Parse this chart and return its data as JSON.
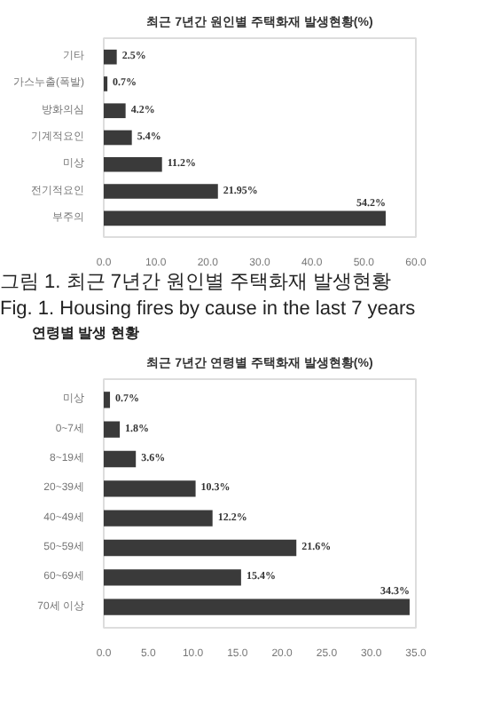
{
  "chart_data": [
    {
      "type": "bar",
      "orientation": "horizontal",
      "title": "최근 7년간 원인별 주택화재 발생현황(%)",
      "categories": [
        "기타",
        "가스누출(폭발)",
        "방화의심",
        "기계적요인",
        "미상",
        "전기적요인",
        "부주의"
      ],
      "values": [
        2.5,
        0.7,
        4.2,
        5.4,
        11.2,
        21.95,
        54.2
      ],
      "color": "#3a3a3a",
      "value_labels": [
        "2.5%",
        "0.7%",
        "4.2%",
        "5.4%",
        "11.2%",
        "21.95%",
        "54.2%"
      ],
      "xlim": [
        0,
        60
      ],
      "xticks": [
        {
          "value": 0,
          "label": "0.0"
        },
        {
          "value": 10,
          "label": "10.0"
        },
        {
          "value": 20,
          "label": "20.0"
        },
        {
          "value": 30,
          "label": "30.0"
        },
        {
          "value": 40,
          "label": "40.0"
        },
        {
          "value": 50,
          "label": "50.0"
        },
        {
          "value": 60,
          "label": "60.0"
        }
      ],
      "grid": false,
      "annotations": [
        "그림 1. 최근 7년간 원인별 주택화재 발생현황",
        "Fig. 1. Housing fires by cause in the last 7 years"
      ]
    },
    {
      "type": "bar",
      "orientation": "horizontal",
      "title": "최근 7년간 연령별 주택화재 발생현황(%)",
      "categories": [
        "미상",
        "0~7세",
        "8~19세",
        "20~39세",
        "40~49세",
        "50~59세",
        "60~69세",
        "70세 이상"
      ],
      "values": [
        0.7,
        1.8,
        3.6,
        10.3,
        12.2,
        21.6,
        15.4,
        34.3
      ],
      "color": "#3a3a3a",
      "value_labels": [
        "0.7%",
        "1.8%",
        "3.6%",
        "10.3%",
        "12.2%",
        "21.6%",
        "15.4%",
        "34.3%"
      ],
      "xlim": [
        0,
        35
      ],
      "xticks": [
        {
          "value": 0,
          "label": "0.0"
        },
        {
          "value": 5,
          "label": "5.0"
        },
        {
          "value": 10,
          "label": "10.0"
        },
        {
          "value": 15,
          "label": "15.0"
        },
        {
          "value": 20,
          "label": "20.0"
        },
        {
          "value": 25,
          "label": "25.0"
        },
        {
          "value": 30,
          "label": "30.0"
        },
        {
          "value": 35,
          "label": "35.0"
        }
      ],
      "grid": false,
      "annotations": [
        "연령별 발생 현황"
      ]
    }
  ]
}
